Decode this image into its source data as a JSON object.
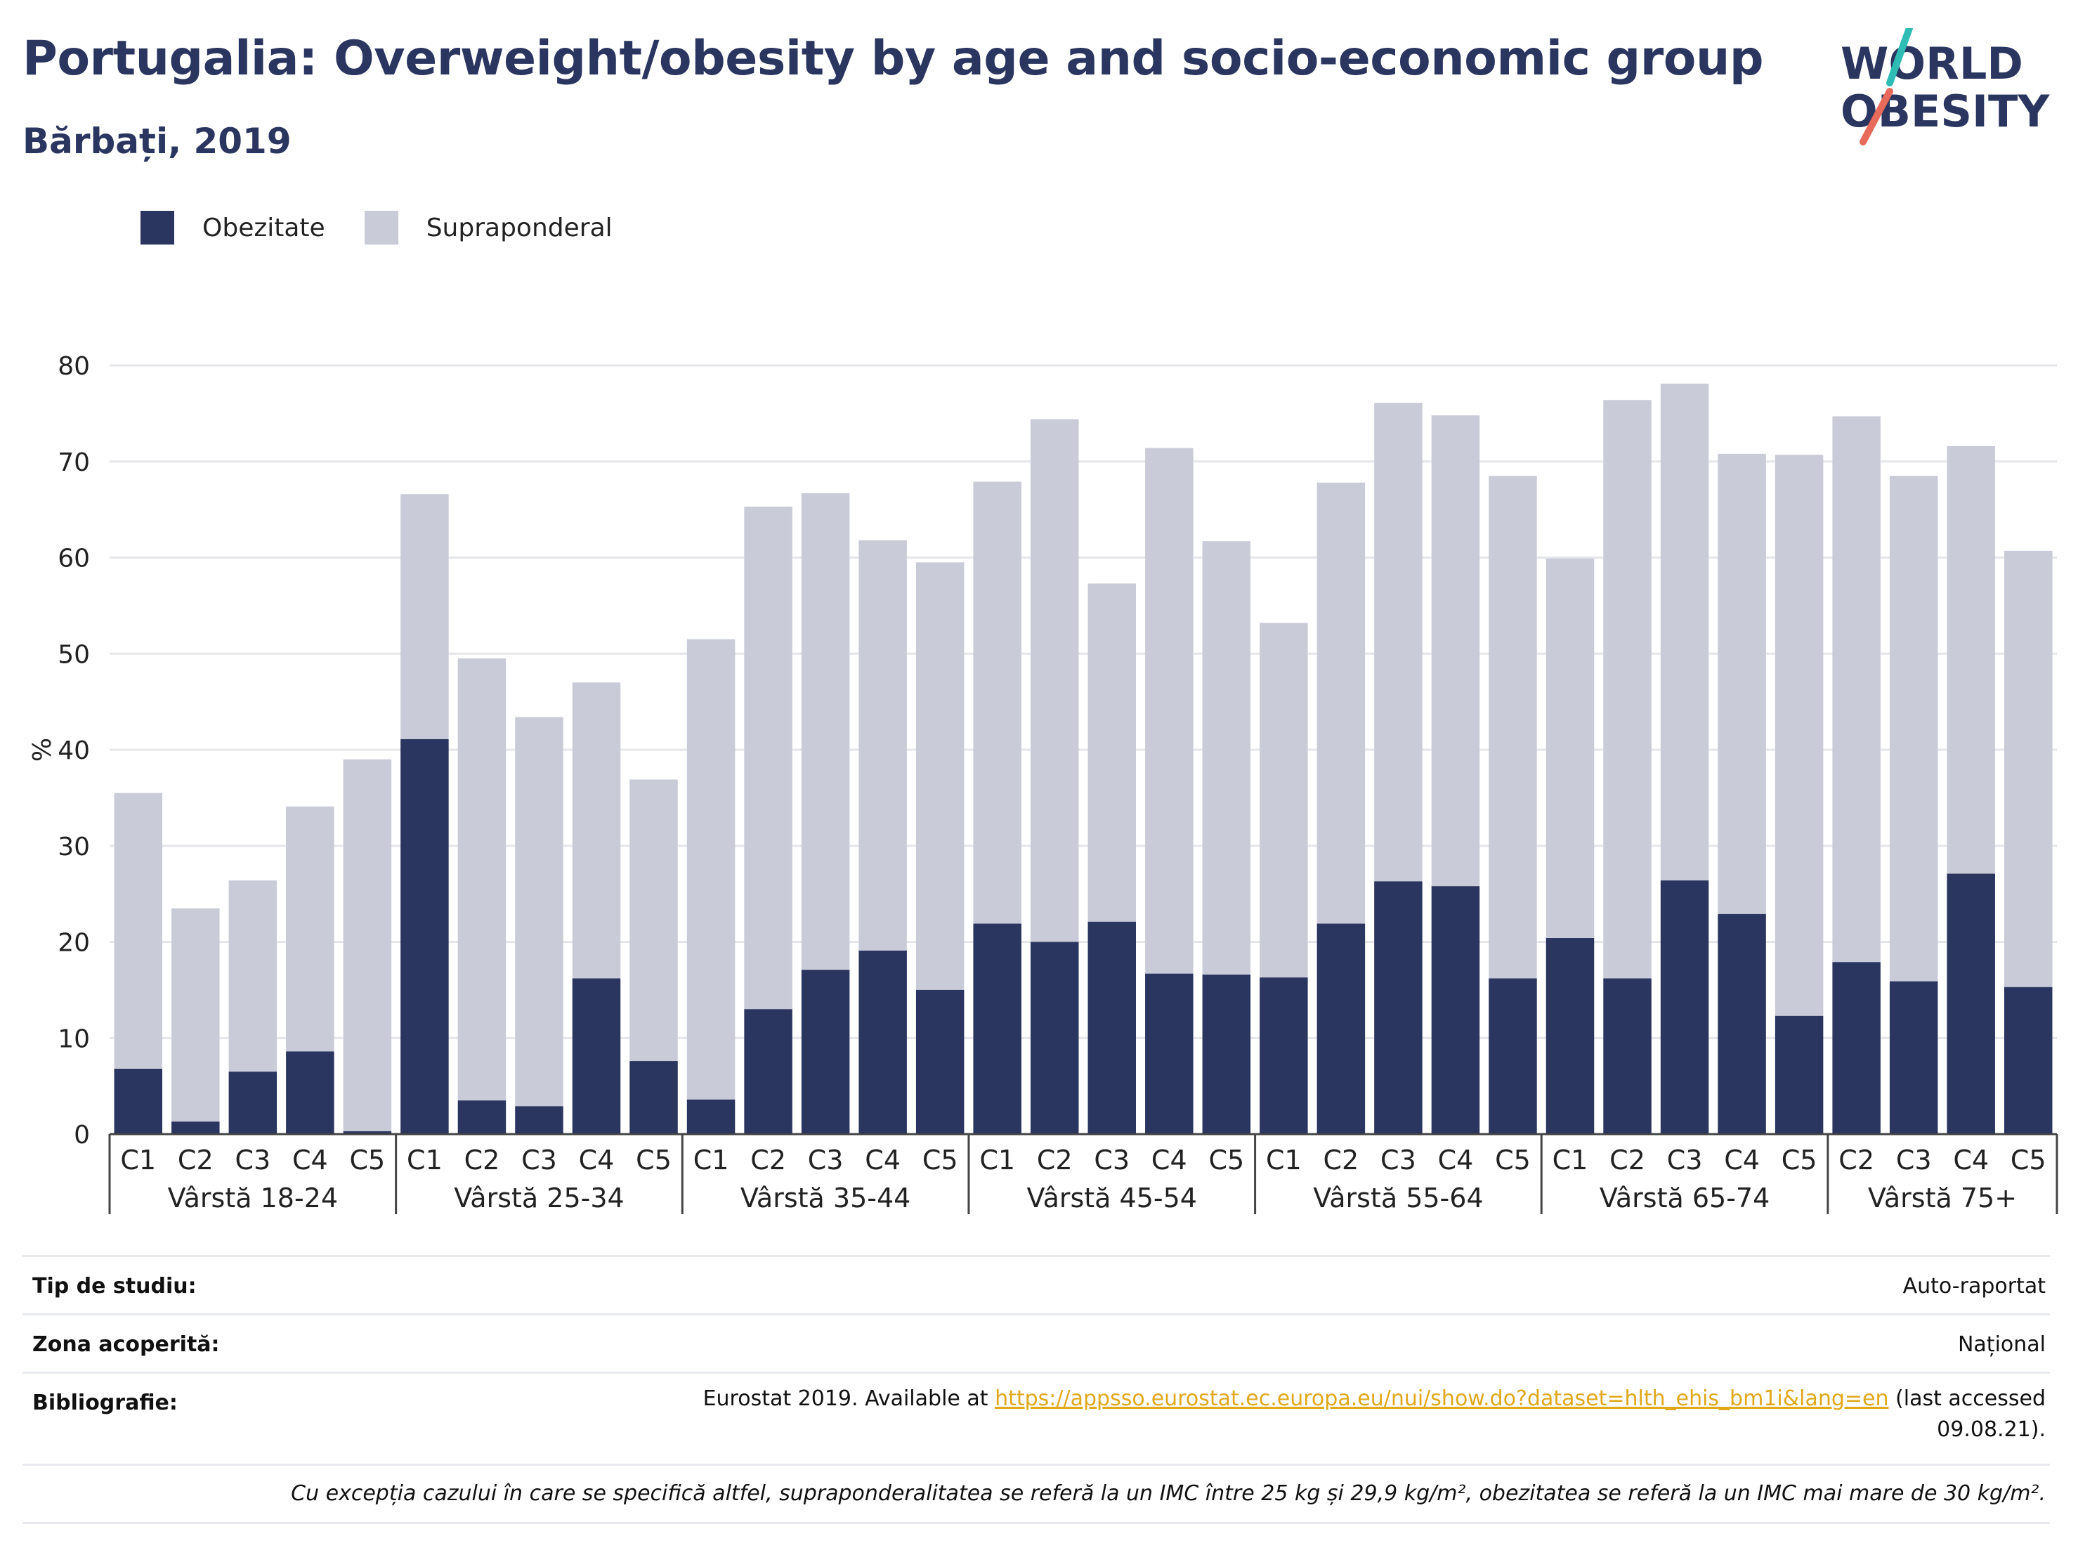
{
  "header": {
    "title": "Portugalia: Overweight/obesity by age and socio-economic group",
    "subtitle": "Bărbați, 2019"
  },
  "logo": {
    "line1": "WORLD",
    "line2": "OBESITY",
    "accent_colors": [
      "#2fbcb4",
      "#e86a5a"
    ]
  },
  "colors": {
    "obesity": "#2a3560",
    "overweight": "#c9cbd8",
    "title": "#2a3560",
    "grid": "#e5e6ec"
  },
  "legend": {
    "obesity_label": "Obezitate",
    "overweight_label": "Supraponderal"
  },
  "chart_data": {
    "type": "bar",
    "stacked": true,
    "ylabel": "%",
    "ylim": [
      0,
      80
    ],
    "yticks": [
      0,
      10,
      20,
      30,
      40,
      50,
      60,
      70,
      80
    ],
    "grid": true,
    "legend_position": "top-left",
    "groups": [
      {
        "label": "Vârstă 18-24",
        "categories": [
          "C1",
          "C2",
          "C3",
          "C4",
          "C5"
        ],
        "obesity": [
          6.8,
          1.3,
          6.5,
          8.6,
          0.3
        ],
        "total": [
          35.5,
          23.5,
          26.4,
          34.1,
          39.0
        ]
      },
      {
        "label": "Vârstă 25-34",
        "categories": [
          "C1",
          "C2",
          "C3",
          "C4",
          "C5"
        ],
        "obesity": [
          41.1,
          3.5,
          2.9,
          16.2,
          7.6
        ],
        "total": [
          66.6,
          49.5,
          43.4,
          47.0,
          36.9
        ]
      },
      {
        "label": "Vârstă 35-44",
        "categories": [
          "C1",
          "C2",
          "C3",
          "C4",
          "C5"
        ],
        "obesity": [
          3.6,
          13.0,
          17.1,
          19.1,
          15.0
        ],
        "total": [
          51.5,
          65.3,
          66.7,
          61.8,
          59.5
        ]
      },
      {
        "label": "Vârstă 45-54",
        "categories": [
          "C1",
          "C2",
          "C3",
          "C4",
          "C5"
        ],
        "obesity": [
          21.9,
          20.0,
          22.1,
          16.7,
          16.6
        ],
        "total": [
          67.9,
          74.4,
          57.3,
          71.4,
          61.7
        ]
      },
      {
        "label": "Vârstă 55-64",
        "categories": [
          "C1",
          "C2",
          "C3",
          "C4",
          "C5"
        ],
        "obesity": [
          16.3,
          21.9,
          26.3,
          25.8,
          16.2
        ],
        "total": [
          53.2,
          67.8,
          76.1,
          74.8,
          68.5
        ]
      },
      {
        "label": "Vârstă 65-74",
        "categories": [
          "C1",
          "C2",
          "C3",
          "C4",
          "C5"
        ],
        "obesity": [
          20.4,
          16.2,
          26.4,
          22.9,
          12.3
        ],
        "total": [
          59.9,
          76.4,
          78.1,
          70.8,
          70.7
        ]
      },
      {
        "label": "Vârstă 75+",
        "categories": [
          "C2",
          "C3",
          "C4",
          "C5"
        ],
        "obesity": [
          17.9,
          15.9,
          27.1,
          15.3
        ],
        "total": [
          74.7,
          68.5,
          71.6,
          60.7
        ]
      }
    ]
  },
  "info": {
    "study_type_label": "Tip de studiu:",
    "study_type_value": "Auto-raportat",
    "coverage_label": "Zona acoperită:",
    "coverage_value": "Național",
    "bibliography_label": "Bibliografie:",
    "bibliography_prefix": "Eurostat 2019. Available at ",
    "bibliography_link": "https://appsso.eurostat.ec.europa.eu/nui/show.do?dataset=hlth_ehis_bm1i&lang=en",
    "bibliography_suffix": " (last accessed",
    "bibliography_date": "09.08.21).",
    "note": "Cu excepția cazului în care se specifică altfel, supraponderalitatea se referă la un IMC între 25 kg și 29,9 kg/m², obezitatea se referă la un IMC mai mare de 30 kg/m²."
  }
}
